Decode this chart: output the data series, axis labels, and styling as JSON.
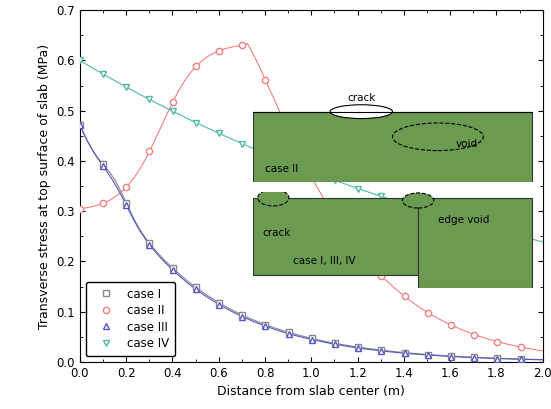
{
  "title": "",
  "xlabel": "Distance from slab center (m)",
  "ylabel": "Transverse stress at top surface of slab (MPa)",
  "xlim": [
    0,
    2.0
  ],
  "ylim": [
    0,
    0.7
  ],
  "xticks": [
    0.0,
    0.2,
    0.4,
    0.6,
    0.8,
    1.0,
    1.2,
    1.4,
    1.6,
    1.8,
    2.0
  ],
  "yticks": [
    0.0,
    0.1,
    0.2,
    0.3,
    0.4,
    0.5,
    0.6,
    0.7
  ],
  "case_I_color": "#888888",
  "case_II_color": "#f08080",
  "case_III_color": "#5555cc",
  "case_IV_color": "#50b8a8",
  "slab_color": "#6a9b50",
  "legend_labels": [
    "case I",
    "case II",
    "case III",
    "case IV"
  ]
}
